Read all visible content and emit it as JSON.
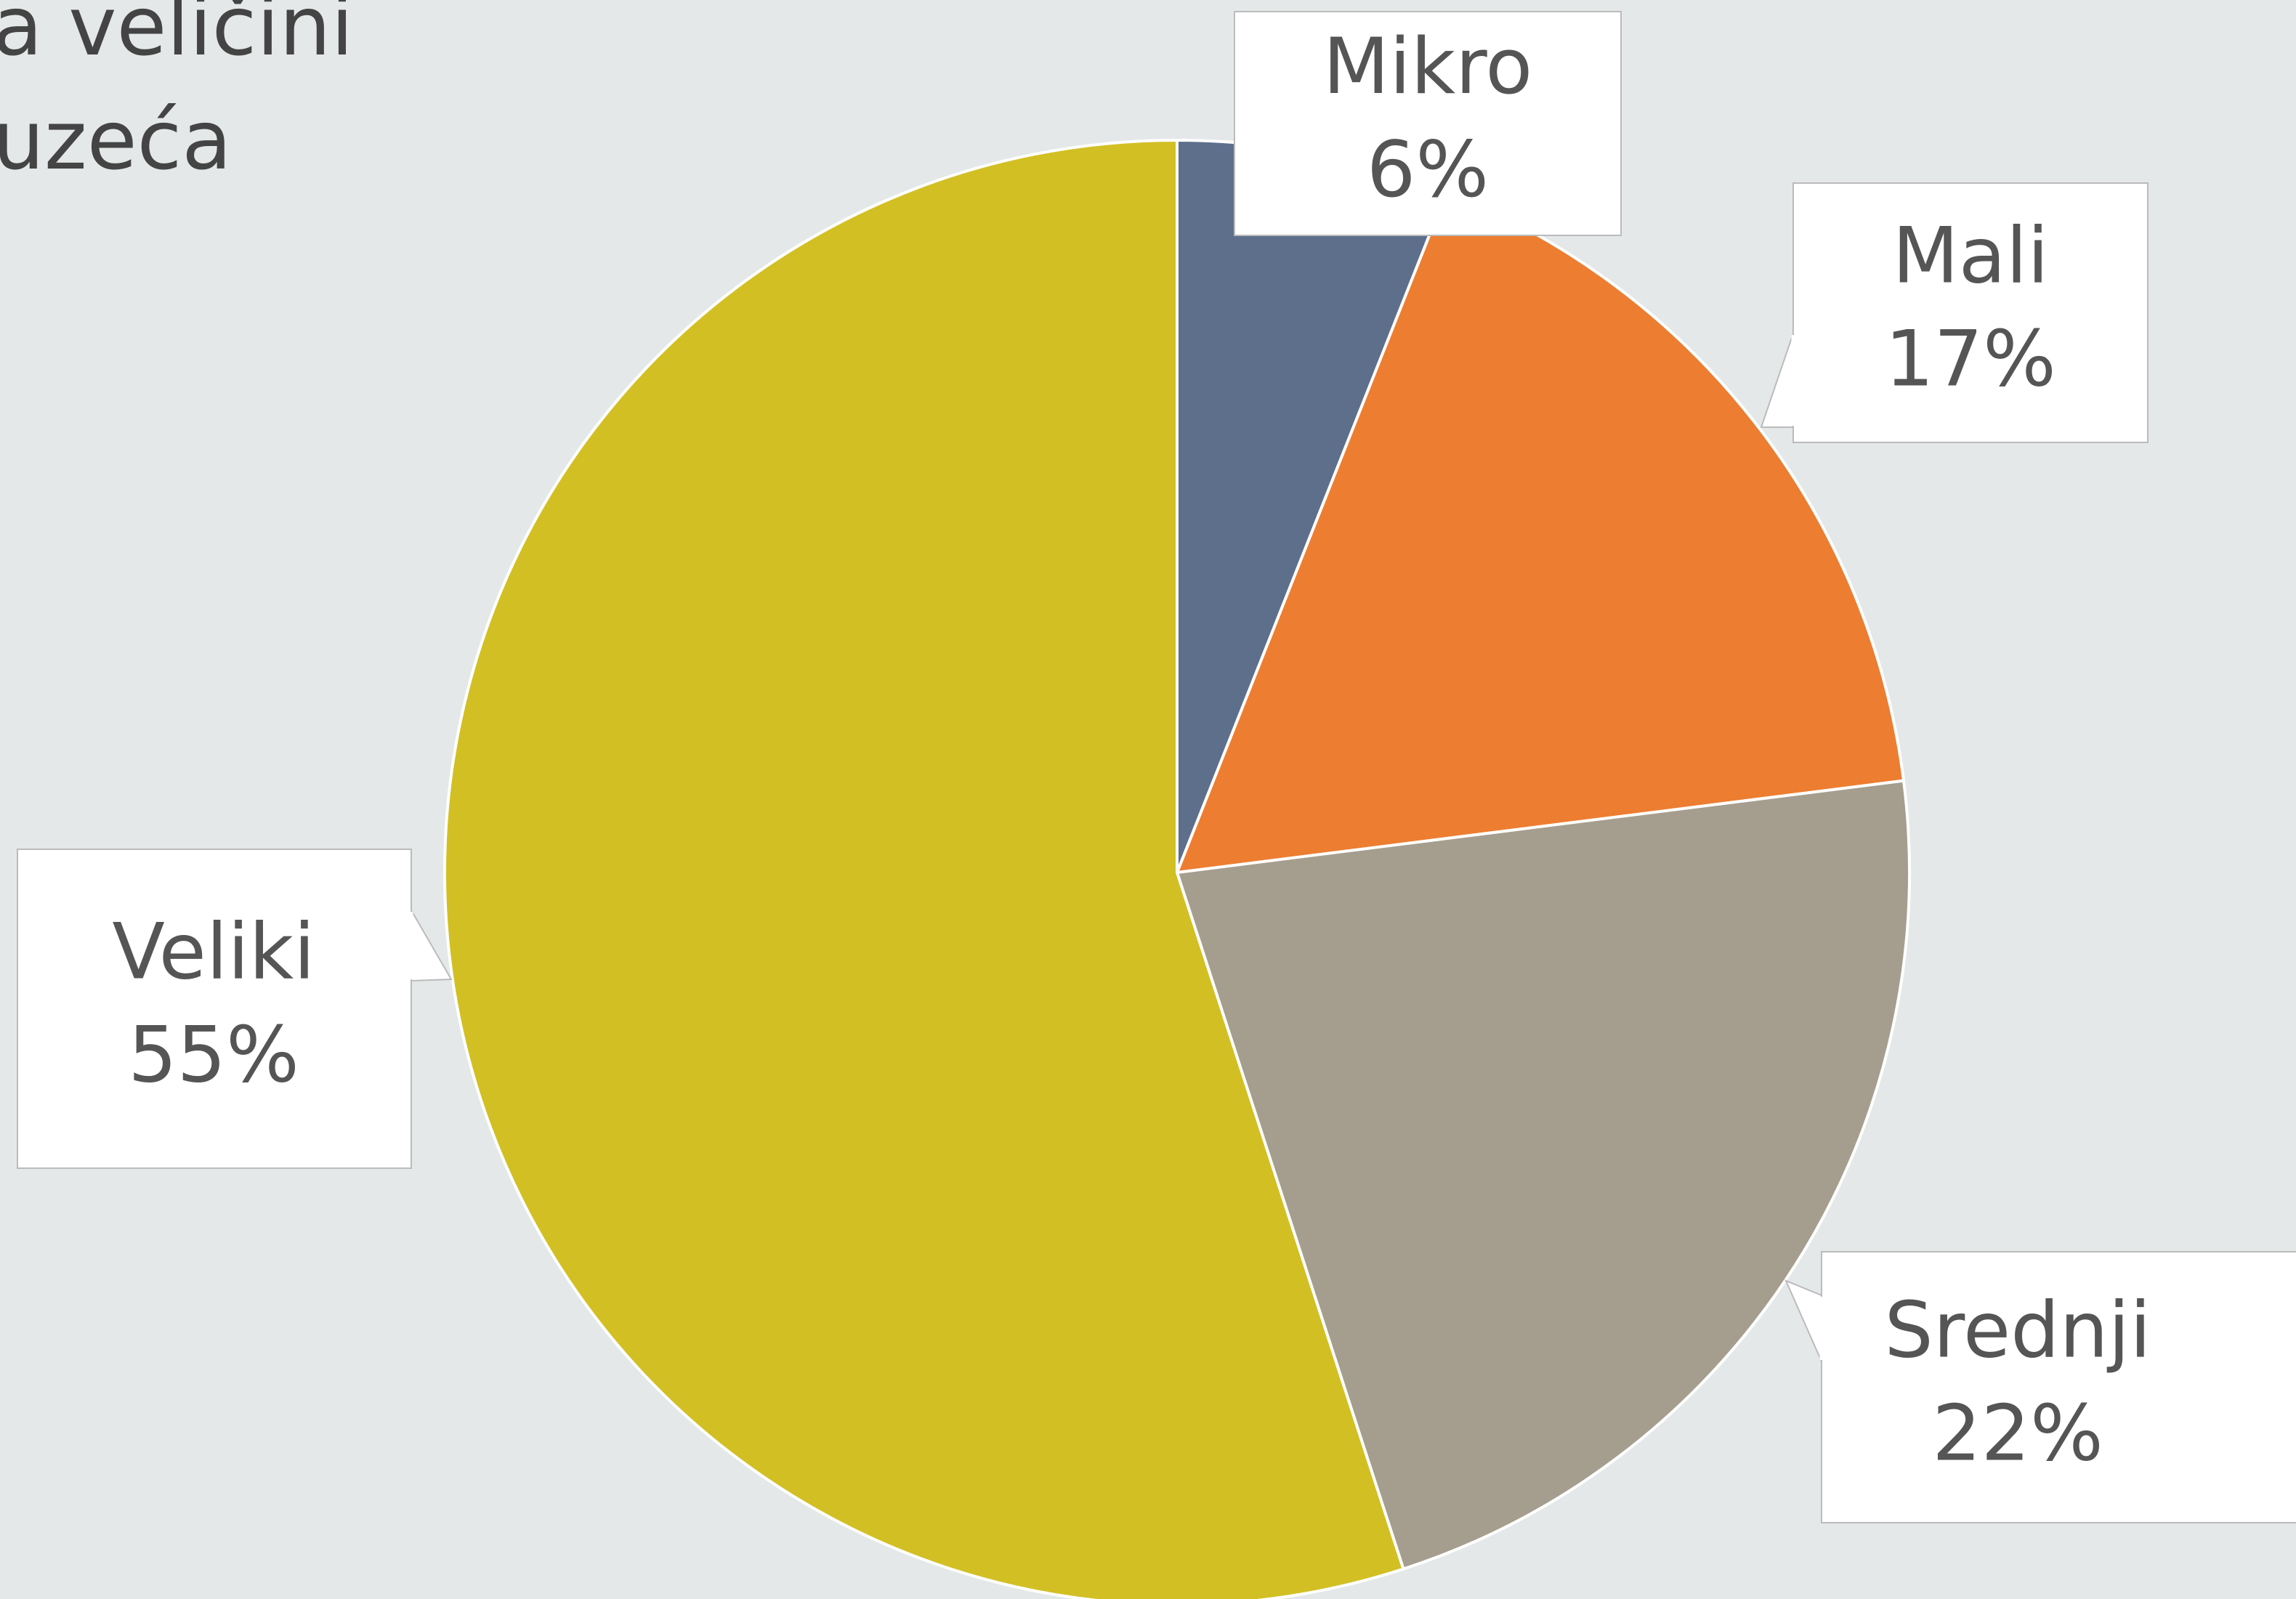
{
  "chart_data": {
    "type": "pie",
    "title_lines": [
      "a veličini",
      "uzeća"
    ],
    "categories": [
      "Mikro",
      "Mali",
      "Srednji",
      "Veliki"
    ],
    "values": [
      6,
      17,
      22,
      55
    ],
    "value_labels": [
      "6%",
      "17%",
      "22%",
      "55%"
    ],
    "colors": [
      "#5e6f8c",
      "#ed7d31",
      "#a59e8f",
      "#d2bf24"
    ]
  }
}
